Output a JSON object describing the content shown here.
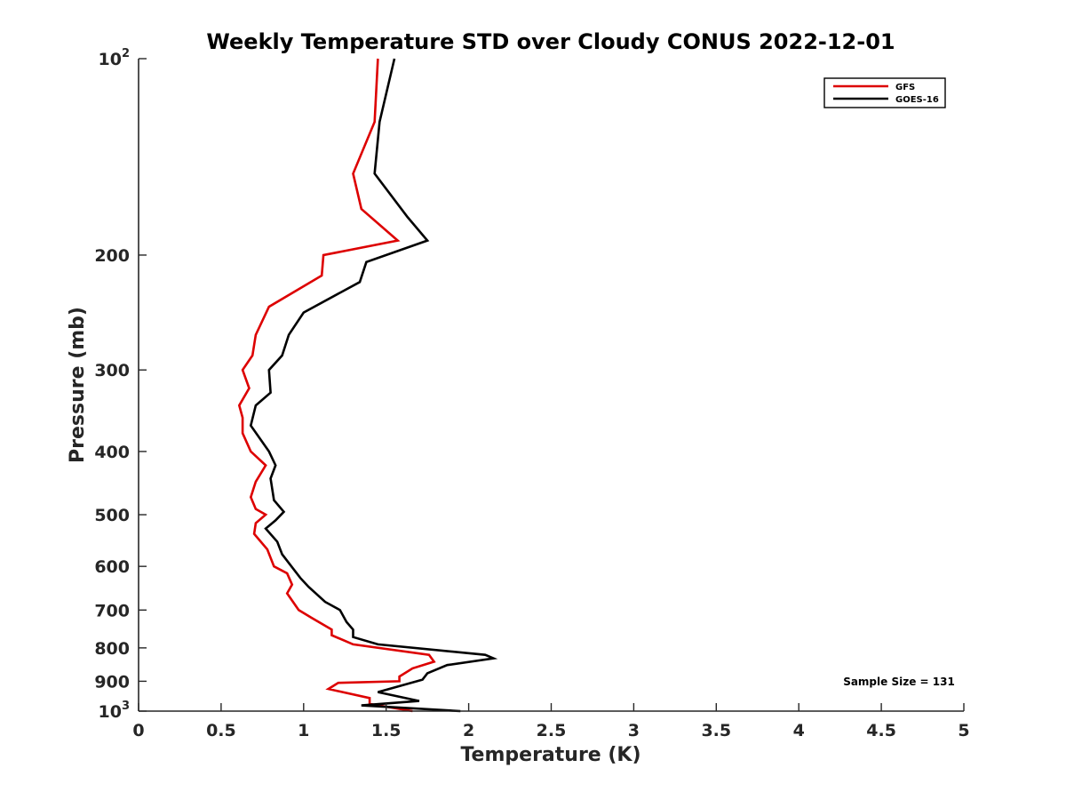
{
  "chart_data": {
    "type": "line",
    "title": "Weekly Temperature STD over Cloudy CONUS 2022-12-01",
    "xlabel": "Temperature (K)",
    "ylabel": "Pressure (mb)",
    "xlim": [
      0,
      5
    ],
    "ylim": [
      100,
      1000
    ],
    "yscale": "log",
    "y_reversed": true,
    "x_ticks": [
      "0",
      "0.5",
      "1",
      "1.5",
      "2",
      "2.5",
      "3",
      "3.5",
      "4",
      "4.5",
      "5"
    ],
    "y_ticks": [
      {
        "value": 100,
        "base": "10",
        "exp": "2"
      },
      {
        "value": 200,
        "label": "200"
      },
      {
        "value": 300,
        "label": "300"
      },
      {
        "value": 400,
        "label": "400"
      },
      {
        "value": 500,
        "label": "500"
      },
      {
        "value": 600,
        "label": "600"
      },
      {
        "value": 700,
        "label": "700"
      },
      {
        "value": 800,
        "label": "800"
      },
      {
        "value": 900,
        "label": "900"
      },
      {
        "value": 1000,
        "base": "10",
        "exp": "3"
      }
    ],
    "grid": false,
    "legend_position": "top-right",
    "annotation": "Sample Size = 131",
    "series": [
      {
        "name": "GFS",
        "color": "#dd0000",
        "points": [
          [
            1.45,
            100
          ],
          [
            1.43,
            125
          ],
          [
            1.3,
            150
          ],
          [
            1.35,
            170
          ],
          [
            1.57,
            190
          ],
          [
            1.12,
            200
          ],
          [
            1.11,
            215
          ],
          [
            0.79,
            240
          ],
          [
            0.71,
            265
          ],
          [
            0.69,
            285
          ],
          [
            0.63,
            300
          ],
          [
            0.67,
            320
          ],
          [
            0.61,
            340
          ],
          [
            0.63,
            355
          ],
          [
            0.63,
            375
          ],
          [
            0.68,
            400
          ],
          [
            0.77,
            420
          ],
          [
            0.71,
            445
          ],
          [
            0.68,
            470
          ],
          [
            0.71,
            490
          ],
          [
            0.77,
            500
          ],
          [
            0.71,
            515
          ],
          [
            0.7,
            535
          ],
          [
            0.78,
            565
          ],
          [
            0.82,
            600
          ],
          [
            0.9,
            615
          ],
          [
            0.93,
            640
          ],
          [
            0.9,
            660
          ],
          [
            0.97,
            700
          ],
          [
            1.05,
            720
          ],
          [
            1.17,
            750
          ],
          [
            1.17,
            765
          ],
          [
            1.3,
            790
          ],
          [
            1.76,
            820
          ],
          [
            1.79,
            840
          ],
          [
            1.66,
            860
          ],
          [
            1.58,
            885
          ],
          [
            1.58,
            900
          ],
          [
            1.21,
            905
          ],
          [
            1.15,
            925
          ],
          [
            1.4,
            955
          ],
          [
            1.4,
            975
          ],
          [
            1.66,
            1000
          ]
        ]
      },
      {
        "name": "GOES-16",
        "color": "#000000",
        "points": [
          [
            1.55,
            100
          ],
          [
            1.46,
            125
          ],
          [
            1.43,
            150
          ],
          [
            1.63,
            175
          ],
          [
            1.75,
            190
          ],
          [
            1.38,
            205
          ],
          [
            1.34,
            220
          ],
          [
            1.0,
            245
          ],
          [
            0.91,
            265
          ],
          [
            0.87,
            285
          ],
          [
            0.79,
            300
          ],
          [
            0.8,
            325
          ],
          [
            0.71,
            340
          ],
          [
            0.68,
            365
          ],
          [
            0.79,
            400
          ],
          [
            0.83,
            420
          ],
          [
            0.8,
            440
          ],
          [
            0.82,
            475
          ],
          [
            0.88,
            495
          ],
          [
            0.83,
            510
          ],
          [
            0.77,
            525
          ],
          [
            0.84,
            550
          ],
          [
            0.87,
            575
          ],
          [
            0.98,
            625
          ],
          [
            1.03,
            645
          ],
          [
            1.13,
            680
          ],
          [
            1.22,
            700
          ],
          [
            1.26,
            730
          ],
          [
            1.3,
            750
          ],
          [
            1.3,
            770
          ],
          [
            1.45,
            790
          ],
          [
            2.1,
            820
          ],
          [
            2.15,
            830
          ],
          [
            1.87,
            850
          ],
          [
            1.75,
            875
          ],
          [
            1.72,
            895
          ],
          [
            1.45,
            935
          ],
          [
            1.7,
            965
          ],
          [
            1.35,
            980
          ],
          [
            1.95,
            1000
          ]
        ]
      }
    ]
  }
}
